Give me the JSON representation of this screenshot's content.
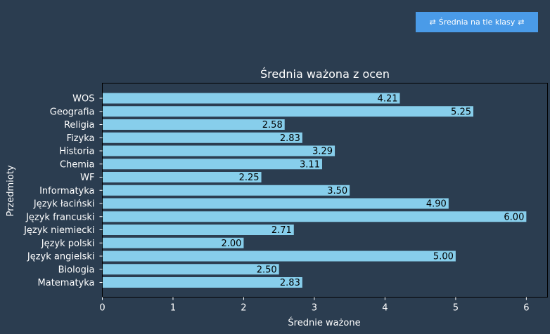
{
  "toolbar": {
    "toggle_label": "Średnia na tle klasy",
    "swap_glyph": "⇄"
  },
  "colors": {
    "background": "#2b3d50",
    "bar": "#87ceeb",
    "text": "#ffffff",
    "button": "#4a9be8"
  },
  "chart_data": {
    "type": "bar",
    "orientation": "horizontal",
    "title": "Średnia ważona z ocen",
    "xlabel": "Średnie ważone",
    "ylabel": "Przedmioty",
    "xlim": [
      0,
      6.3
    ],
    "xticks": [
      0,
      1,
      2,
      3,
      4,
      5,
      6
    ],
    "grid": false,
    "categories": [
      "WOS",
      "Geografia",
      "Religia",
      "Fizyka",
      "Historia",
      "Chemia",
      "WF",
      "Informatyka",
      "Język łaciński",
      "Język francuski",
      "Język niemiecki",
      "Język polski",
      "Język angielski",
      "Biologia",
      "Matematyka"
    ],
    "values": [
      4.21,
      5.25,
      2.58,
      2.83,
      3.29,
      3.11,
      2.25,
      3.5,
      4.9,
      6.0,
      2.71,
      2.0,
      5.0,
      2.5,
      2.83
    ],
    "value_labels": [
      "4.21",
      "5.25",
      "2.58",
      "2.83",
      "3.29",
      "3.11",
      "2.25",
      "3.50",
      "4.90",
      "6.00",
      "2.71",
      "2.00",
      "5.00",
      "2.50",
      "2.83"
    ]
  }
}
